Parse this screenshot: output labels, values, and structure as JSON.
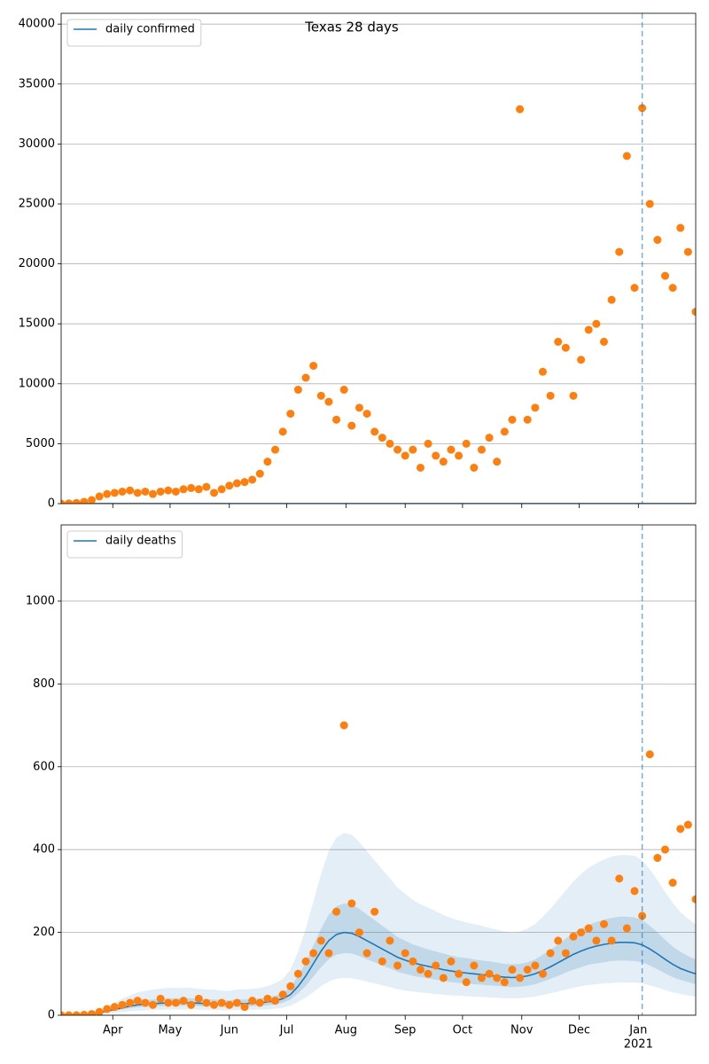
{
  "chart_data": [
    {
      "type": "scatter",
      "title": "Texas 28 days",
      "x": [
        "2020-03-05",
        "2020-03-09",
        "2020-03-13",
        "2020-03-17",
        "2020-03-21",
        "2020-03-25",
        "2020-03-29",
        "2020-04-02",
        "2020-04-06",
        "2020-04-10",
        "2020-04-14",
        "2020-04-18",
        "2020-04-22",
        "2020-04-26",
        "2020-04-30",
        "2020-05-04",
        "2020-05-08",
        "2020-05-12",
        "2020-05-16",
        "2020-05-20",
        "2020-05-24",
        "2020-05-28",
        "2020-06-01",
        "2020-06-05",
        "2020-06-09",
        "2020-06-13",
        "2020-06-17",
        "2020-06-21",
        "2020-06-25",
        "2020-06-29",
        "2020-07-03",
        "2020-07-07",
        "2020-07-11",
        "2020-07-15",
        "2020-07-19",
        "2020-07-23",
        "2020-07-27",
        "2020-07-31",
        "2020-08-04",
        "2020-08-08",
        "2020-08-12",
        "2020-08-16",
        "2020-08-20",
        "2020-08-24",
        "2020-08-28",
        "2020-09-01",
        "2020-09-05",
        "2020-09-09",
        "2020-09-13",
        "2020-09-17",
        "2020-09-21",
        "2020-09-25",
        "2020-09-29",
        "2020-10-03",
        "2020-10-07",
        "2020-10-11",
        "2020-10-15",
        "2020-10-19",
        "2020-10-23",
        "2020-10-27",
        "2020-10-31",
        "2020-11-04",
        "2020-11-08",
        "2020-11-12",
        "2020-11-16",
        "2020-11-20",
        "2020-11-24",
        "2020-11-28",
        "2020-12-02",
        "2020-12-06",
        "2020-12-10",
        "2020-12-14",
        "2020-12-18",
        "2020-12-22",
        "2020-12-26",
        "2020-12-30",
        "2021-01-03",
        "2021-01-07",
        "2021-01-11",
        "2021-01-15",
        "2021-01-19",
        "2021-01-23",
        "2021-01-27",
        "2021-01-31"
      ],
      "series": [
        {
          "name": "daily confirmed",
          "kind": "line",
          "color": "#1f77b4",
          "x": [
            "2020-03-05",
            "2021-01-31"
          ],
          "values": [
            0,
            0
          ]
        },
        {
          "kind": "scatter",
          "color": "#ff7f0e",
          "values": [
            0,
            20,
            60,
            150,
            300,
            600,
            800,
            900,
            1000,
            1100,
            900,
            1000,
            800,
            1000,
            1100,
            1000,
            1200,
            1300,
            1200,
            1400,
            900,
            1200,
            1500,
            1700,
            1800,
            2000,
            2500,
            3500,
            4500,
            6000,
            7500,
            9500,
            10500,
            11500,
            9000,
            8500,
            7000,
            9500,
            6500,
            8000,
            7500,
            6000,
            5500,
            5000,
            4500,
            4000,
            4500,
            3000,
            5000,
            4000,
            3500,
            4500,
            4000,
            5000,
            3000,
            4500,
            5500,
            3500,
            6000,
            7000,
            32900,
            7000,
            8000,
            11000,
            9000,
            13500,
            13000,
            9000,
            12000,
            14500,
            15000,
            13500,
            17000,
            21000,
            29000,
            18000,
            33000,
            25000,
            22000,
            19000,
            18000,
            23000,
            21000,
            16000
          ]
        }
      ],
      "xlim": [
        "2020-03-05",
        "2021-01-31"
      ],
      "xticks": [
        "2020-04-01",
        "2020-05-01",
        "2020-06-01",
        "2020-07-01",
        "2020-08-01",
        "2020-09-01",
        "2020-10-01",
        "2020-11-01",
        "2020-12-01",
        "2021-01-01"
      ],
      "ylim": [
        0,
        40900
      ],
      "yticks": [
        0,
        5000,
        10000,
        15000,
        20000,
        25000,
        30000,
        35000,
        40000
      ],
      "vline": "2021-01-03",
      "grid": true,
      "legend": "upper left"
    },
    {
      "type": "scatter",
      "x": [
        "2020-03-05",
        "2020-03-09",
        "2020-03-13",
        "2020-03-17",
        "2020-03-21",
        "2020-03-25",
        "2020-03-29",
        "2020-04-02",
        "2020-04-06",
        "2020-04-10",
        "2020-04-14",
        "2020-04-18",
        "2020-04-22",
        "2020-04-26",
        "2020-04-30",
        "2020-05-04",
        "2020-05-08",
        "2020-05-12",
        "2020-05-16",
        "2020-05-20",
        "2020-05-24",
        "2020-05-28",
        "2020-06-01",
        "2020-06-05",
        "2020-06-09",
        "2020-06-13",
        "2020-06-17",
        "2020-06-21",
        "2020-06-25",
        "2020-06-29",
        "2020-07-03",
        "2020-07-07",
        "2020-07-11",
        "2020-07-15",
        "2020-07-19",
        "2020-07-23",
        "2020-07-27",
        "2020-07-31",
        "2020-08-04",
        "2020-08-08",
        "2020-08-12",
        "2020-08-16",
        "2020-08-20",
        "2020-08-24",
        "2020-08-28",
        "2020-09-01",
        "2020-09-05",
        "2020-09-09",
        "2020-09-13",
        "2020-09-17",
        "2020-09-21",
        "2020-09-25",
        "2020-09-29",
        "2020-10-03",
        "2020-10-07",
        "2020-10-11",
        "2020-10-15",
        "2020-10-19",
        "2020-10-23",
        "2020-10-27",
        "2020-10-31",
        "2020-11-04",
        "2020-11-08",
        "2020-11-12",
        "2020-11-16",
        "2020-11-20",
        "2020-11-24",
        "2020-11-28",
        "2020-12-02",
        "2020-12-06",
        "2020-12-10",
        "2020-12-14",
        "2020-12-18",
        "2020-12-22",
        "2020-12-26",
        "2020-12-30",
        "2021-01-03",
        "2021-01-07",
        "2021-01-11",
        "2021-01-15",
        "2021-01-19",
        "2021-01-23",
        "2021-01-27",
        "2021-01-31"
      ],
      "bands": [
        {
          "color": "#1f77b4",
          "opacity": 0.12,
          "lower": [
            0,
            0,
            0,
            0,
            1,
            3,
            5,
            6,
            8,
            10,
            11,
            12,
            13,
            13,
            14,
            14,
            14,
            14,
            13,
            13,
            13,
            12,
            12,
            13,
            13,
            13,
            14,
            14,
            16,
            18,
            23,
            32,
            43,
            56,
            70,
            81,
            88,
            90,
            89,
            86,
            81,
            77,
            72,
            68,
            63,
            60,
            57,
            55,
            53,
            51,
            50,
            48,
            47,
            46,
            45,
            44,
            43,
            42,
            41,
            41,
            41,
            43,
            45,
            49,
            53,
            57,
            62,
            66,
            70,
            73,
            75,
            77,
            78,
            79,
            79,
            79,
            77,
            72,
            67,
            61,
            55,
            51,
            48,
            45
          ],
          "upper": [
            0,
            0,
            0,
            2,
            7,
            13,
            22,
            31,
            40,
            48,
            55,
            59,
            62,
            64,
            66,
            66,
            66,
            66,
            64,
            62,
            62,
            59,
            59,
            62,
            62,
            64,
            66,
            70,
            77,
            88,
            110,
            154,
            209,
            275,
            341,
            396,
            429,
            440,
            436,
            418,
            396,
            374,
            352,
            330,
            308,
            293,
            279,
            268,
            260,
            251,
            242,
            235,
            229,
            224,
            220,
            216,
            211,
            207,
            202,
            200,
            202,
            209,
            220,
            238,
            257,
            279,
            301,
            323,
            341,
            356,
            367,
            376,
            383,
            387,
            387,
            385,
            374,
            352,
            326,
            297,
            271,
            249,
            233,
            220
          ]
        },
        {
          "color": "#1f77b4",
          "opacity": 0.18,
          "lower": [
            0,
            0,
            0,
            1,
            2,
            5,
            8,
            11,
            14,
            17,
            19,
            20,
            21,
            22,
            23,
            23,
            23,
            23,
            22,
            21,
            21,
            20,
            20,
            21,
            21,
            22,
            23,
            24,
            26,
            30,
            38,
            53,
            71,
            94,
            116,
            135,
            146,
            150,
            149,
            143,
            135,
            128,
            120,
            113,
            105,
            100,
            95,
            92,
            89,
            86,
            83,
            80,
            78,
            77,
            75,
            74,
            72,
            71,
            69,
            68,
            69,
            71,
            75,
            81,
            88,
            95,
            103,
            110,
            116,
            122,
            125,
            128,
            131,
            132,
            132,
            131,
            128,
            120,
            111,
            101,
            92,
            85,
            80,
            75
          ],
          "upper": [
            0,
            0,
            0,
            1,
            4,
            8,
            14,
            19,
            24,
            30,
            34,
            36,
            38,
            39,
            41,
            41,
            41,
            41,
            39,
            38,
            38,
            36,
            36,
            38,
            38,
            39,
            41,
            43,
            47,
            54,
            68,
            95,
            128,
            169,
            209,
            243,
            263,
            270,
            267,
            257,
            243,
            230,
            216,
            203,
            189,
            180,
            171,
            165,
            159,
            154,
            149,
            144,
            140,
            138,
            135,
            132,
            130,
            127,
            124,
            123,
            124,
            128,
            135,
            146,
            158,
            171,
            185,
            198,
            209,
            219,
            225,
            231,
            235,
            238,
            238,
            236,
            230,
            216,
            200,
            182,
            166,
            153,
            143,
            135
          ]
        }
      ],
      "series": [
        {
          "name": "daily deaths",
          "kind": "line",
          "color": "#1f77b4",
          "values": [
            0,
            0,
            0,
            1,
            3,
            6,
            10,
            14,
            18,
            22,
            25,
            27,
            28,
            29,
            30,
            30,
            30,
            30,
            29,
            28,
            28,
            27,
            27,
            28,
            28,
            29,
            30,
            32,
            35,
            40,
            50,
            70,
            95,
            125,
            155,
            180,
            195,
            200,
            198,
            190,
            180,
            170,
            160,
            150,
            140,
            133,
            127,
            122,
            118,
            114,
            110,
            107,
            104,
            102,
            100,
            98,
            96,
            94,
            92,
            91,
            92,
            95,
            100,
            108,
            117,
            127,
            137,
            147,
            155,
            162,
            167,
            171,
            174,
            176,
            176,
            175,
            170,
            160,
            148,
            135,
            123,
            113,
            106,
            100
          ]
        },
        {
          "kind": "scatter",
          "color": "#ff7f0e",
          "values": [
            0,
            0,
            0,
            1,
            3,
            8,
            15,
            20,
            25,
            30,
            35,
            30,
            25,
            40,
            30,
            30,
            35,
            25,
            40,
            30,
            25,
            30,
            25,
            30,
            20,
            35,
            30,
            40,
            35,
            50,
            70,
            100,
            130,
            150,
            180,
            150,
            250,
            700,
            270,
            200,
            150,
            250,
            130,
            180,
            120,
            150,
            130,
            110,
            100,
            120,
            90,
            130,
            100,
            80,
            120,
            90,
            100,
            90,
            80,
            110,
            90,
            110,
            120,
            100,
            150,
            180,
            150,
            190,
            200,
            210,
            180,
            220,
            180,
            330,
            210,
            300,
            240,
            630,
            380,
            400,
            320,
            450,
            460,
            280
          ]
        }
      ],
      "xlim": [
        "2020-03-05",
        "2021-01-31"
      ],
      "xticks": [
        {
          "value": "2020-04-01",
          "label": "Apr"
        },
        {
          "value": "2020-05-01",
          "label": "May"
        },
        {
          "value": "2020-06-01",
          "label": "Jun"
        },
        {
          "value": "2020-07-01",
          "label": "Jul"
        },
        {
          "value": "2020-08-01",
          "label": "Aug"
        },
        {
          "value": "2020-09-01",
          "label": "Sep"
        },
        {
          "value": "2020-10-01",
          "label": "Oct"
        },
        {
          "value": "2020-11-01",
          "label": "Nov"
        },
        {
          "value": "2020-12-01",
          "label": "Dec"
        },
        {
          "value": "2021-01-01",
          "label": "Jan",
          "sublabel": "2021"
        }
      ],
      "ylim": [
        0,
        1184
      ],
      "yticks": [
        0,
        200,
        400,
        600,
        800,
        1000
      ],
      "vline": "2021-01-03",
      "grid": true,
      "legend": "upper left"
    }
  ]
}
